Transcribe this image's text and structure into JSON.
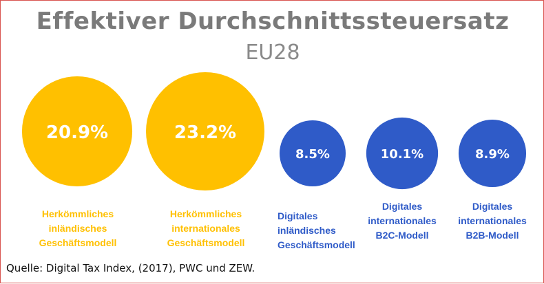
{
  "chart_data": {
    "type": "bubble",
    "title": "Effektiver Durchschnittssteuersatz",
    "subtitle": "EU28",
    "unit": "%",
    "categories": [
      [
        "Herkömmliches",
        "inländisches",
        "Geschäftsmodell"
      ],
      [
        "Herkömmliches",
        "internationales",
        "Geschäftsmodell"
      ],
      [
        "Digitales",
        "inländisches",
        "Geschäftsmodell"
      ],
      [
        "Digitales",
        "internationales",
        "B2C-Modell"
      ],
      [
        "Digitales",
        "internationales",
        "B2B-Modell"
      ]
    ],
    "values": [
      20.9,
      23.2,
      8.5,
      10.1,
      8.9
    ],
    "value_labels": [
      "20.9%",
      "23.2%",
      "8.5%",
      "10.1%",
      "8.9%"
    ],
    "colors": [
      "#FFC000",
      "#FFC000",
      "#2F5BC8",
      "#2F5BC8",
      "#2F5BC8"
    ],
    "value_text_color": "#ffffff",
    "legend": "none",
    "grid": false
  },
  "source": "Quelle: Digital Tax Index, (2017), PWC und ZEW."
}
